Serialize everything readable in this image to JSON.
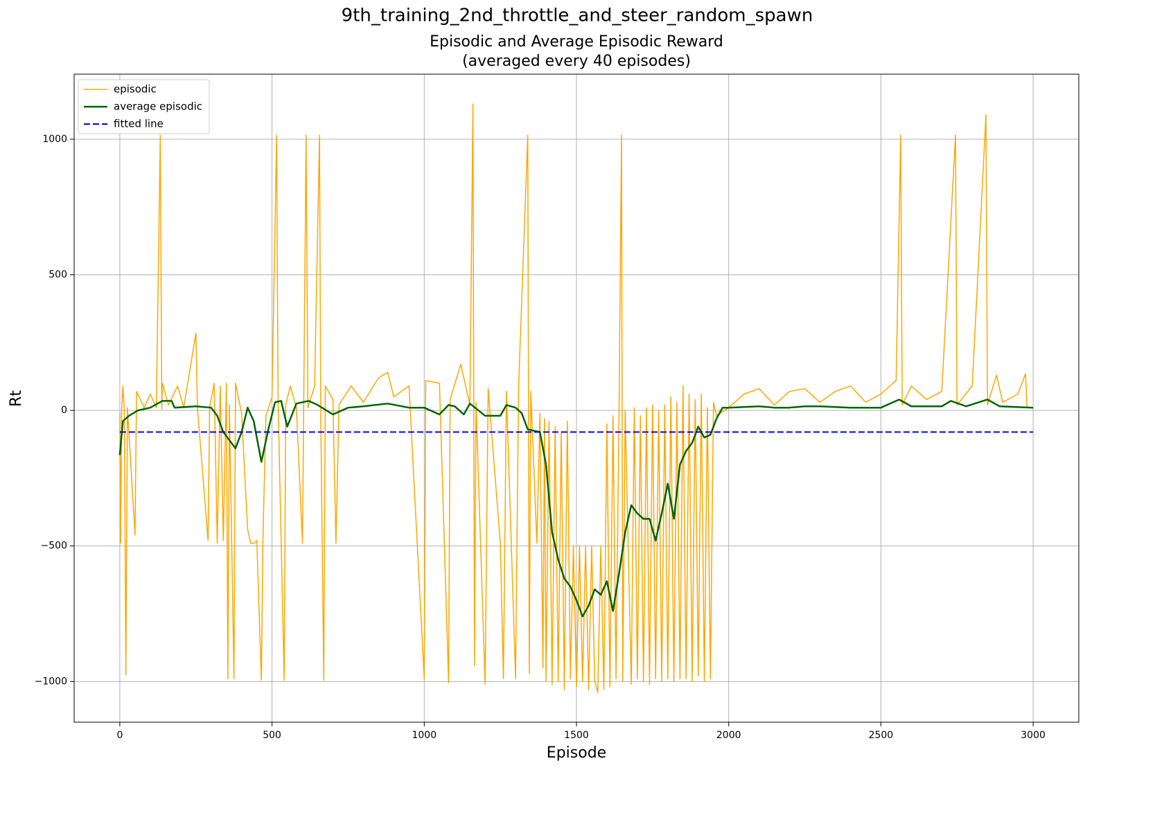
{
  "chart_data": {
    "type": "line",
    "suptitle": "9th_training_2nd_throttle_and_steer_random_spawn",
    "title": [
      "Episodic and Average Episodic Reward",
      "(averaged every 40 episodes)"
    ],
    "xlabel": "Episode",
    "ylabel": "Rt",
    "xlim": [
      -150,
      3150
    ],
    "ylim": [
      -1150,
      1240
    ],
    "xticks": [
      0,
      500,
      1000,
      1500,
      2000,
      2500,
      3000
    ],
    "yticks": [
      {
        "value": -1000,
        "label": "−1000"
      },
      {
        "value": -500,
        "label": "−500"
      },
      0,
      500,
      1000
    ],
    "grid": true,
    "legend": "upper left",
    "series": [
      {
        "name": "episodic",
        "color": "#ffa500",
        "dash": "solid",
        "width": 1.5,
        "x": [
          0,
          3,
          6,
          10,
          15,
          20,
          25,
          50,
          55,
          80,
          100,
          120,
          133,
          138,
          140,
          160,
          190,
          210,
          250,
          255,
          290,
          295,
          310,
          320,
          330,
          340,
          350,
          355,
          360,
          375,
          380,
          400,
          420,
          430,
          440,
          450,
          465,
          470,
          480,
          500,
          515,
          520,
          540,
          545,
          560,
          580,
          600,
          612,
          618,
          640,
          656,
          660,
          670,
          675,
          700,
          710,
          720,
          760,
          800,
          850,
          880,
          900,
          950,
          1000,
          1005,
          1050,
          1080,
          1085,
          1120,
          1150,
          1160,
          1165,
          1170,
          1200,
          1210,
          1250,
          1260,
          1270,
          1300,
          1310,
          1340,
          1345,
          1350,
          1370,
          1380,
          1390,
          1395,
          1400,
          1410,
          1420,
          1430,
          1440,
          1450,
          1460,
          1470,
          1480,
          1490,
          1500,
          1510,
          1520,
          1530,
          1540,
          1550,
          1560,
          1570,
          1580,
          1590,
          1600,
          1610,
          1620,
          1630,
          1640,
          1648,
          1652,
          1660,
          1680,
          1690,
          1700,
          1710,
          1720,
          1730,
          1740,
          1750,
          1760,
          1770,
          1780,
          1790,
          1800,
          1810,
          1820,
          1830,
          1840,
          1850,
          1860,
          1870,
          1880,
          1890,
          1900,
          1910,
          1920,
          1930,
          1940,
          1950,
          1960,
          2000,
          2050,
          2100,
          2150,
          2200,
          2250,
          2300,
          2350,
          2400,
          2450,
          2500,
          2550,
          2565,
          2570,
          2600,
          2650,
          2700,
          2745,
          2750,
          2800,
          2845,
          2850,
          2880,
          2900,
          2950,
          2975,
          2980,
          3000
        ],
        "values": [
          -10,
          -490,
          5,
          90,
          0,
          -975,
          10,
          -460,
          70,
          10,
          60,
          10,
          1015,
          5,
          100,
          20,
          90,
          10,
          285,
          10,
          -480,
          10,
          100,
          -490,
          90,
          -480,
          100,
          -990,
          20,
          -990,
          100,
          -10,
          -440,
          -490,
          -490,
          -480,
          -995,
          -480,
          -20,
          50,
          1015,
          30,
          -995,
          20,
          90,
          10,
          -490,
          1015,
          10,
          90,
          1015,
          -10,
          -995,
          90,
          40,
          -490,
          20,
          90,
          30,
          120,
          140,
          50,
          90,
          -990,
          110,
          100,
          -1005,
          40,
          170,
          20,
          1130,
          -940,
          30,
          -1010,
          80,
          -490,
          -990,
          70,
          -990,
          90,
          1015,
          -970,
          70,
          -490,
          -10,
          -950,
          -30,
          -1000,
          -40,
          -1010,
          -60,
          -1000,
          -80,
          -1030,
          -40,
          -990,
          -500,
          -1020,
          -500,
          -1000,
          -500,
          -1030,
          -500,
          -1000,
          -1040,
          -500,
          -1030,
          -50,
          -1020,
          -20,
          -990,
          10,
          1015,
          -1000,
          0,
          -1010,
          10,
          -990,
          -20,
          -1000,
          10,
          -1010,
          20,
          -990,
          0,
          -1000,
          20,
          -990,
          50,
          -1000,
          30,
          -990,
          90,
          -990,
          60,
          -1000,
          40,
          -980,
          60,
          -1000,
          10,
          -990,
          30,
          -20,
          10,
          60,
          80,
          20,
          70,
          80,
          30,
          70,
          90,
          30,
          60,
          110,
          1015,
          20,
          90,
          40,
          70,
          1015,
          20,
          90,
          1090,
          20,
          130,
          30,
          60,
          135,
          10,
          10
        ]
      },
      {
        "name": "average episodic",
        "color": "#006400",
        "dash": "solid",
        "width": 2.5,
        "x": [
          0,
          10,
          30,
          60,
          100,
          140,
          170,
          180,
          250,
          300,
          320,
          340,
          380,
          400,
          420,
          440,
          465,
          490,
          510,
          530,
          550,
          580,
          620,
          650,
          700,
          750,
          800,
          880,
          950,
          1000,
          1050,
          1080,
          1100,
          1130,
          1150,
          1200,
          1250,
          1270,
          1300,
          1320,
          1340,
          1380,
          1400,
          1420,
          1440,
          1460,
          1480,
          1500,
          1520,
          1540,
          1560,
          1580,
          1600,
          1620,
          1640,
          1660,
          1680,
          1700,
          1720,
          1740,
          1760,
          1780,
          1800,
          1820,
          1840,
          1860,
          1880,
          1900,
          1920,
          1940,
          1960,
          1980,
          2000,
          2100,
          2150,
          2200,
          2250,
          2300,
          2400,
          2500,
          2560,
          2600,
          2700,
          2730,
          2780,
          2850,
          2890,
          3000
        ],
        "values": [
          -165,
          -40,
          -20,
          0,
          10,
          35,
          35,
          10,
          15,
          10,
          -20,
          -80,
          -140,
          -80,
          10,
          -40,
          -190,
          -60,
          30,
          35,
          -60,
          25,
          35,
          20,
          -15,
          10,
          15,
          25,
          10,
          10,
          -15,
          20,
          15,
          -15,
          25,
          -20,
          -20,
          20,
          10,
          -10,
          -70,
          -80,
          -200,
          -450,
          -550,
          -620,
          -650,
          -700,
          -760,
          -720,
          -660,
          -680,
          -630,
          -740,
          -600,
          -450,
          -350,
          -380,
          -400,
          -400,
          -480,
          -380,
          -270,
          -400,
          -200,
          -150,
          -120,
          -60,
          -100,
          -90,
          -30,
          10,
          10,
          15,
          10,
          10,
          15,
          15,
          10,
          10,
          40,
          15,
          15,
          35,
          15,
          40,
          15,
          10
        ]
      },
      {
        "name": "fitted line",
        "color": "#0000ff",
        "dash": "dashed",
        "width": 2,
        "x": [
          0,
          3000
        ],
        "values": [
          -80,
          -80
        ]
      }
    ]
  }
}
